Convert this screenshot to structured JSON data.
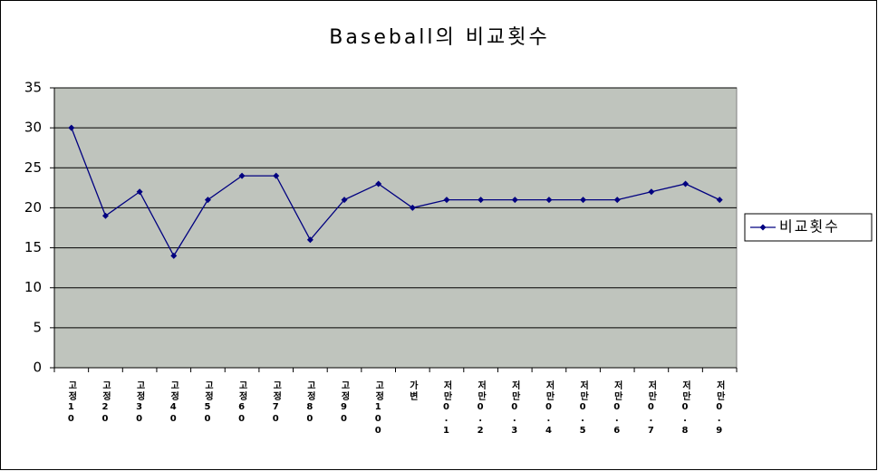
{
  "chart_data": {
    "type": "line",
    "title": "Baseball의 비교횟수",
    "categories": [
      "고정10",
      "고정20",
      "고정30",
      "고정40",
      "고정50",
      "고정60",
      "고정70",
      "고정80",
      "고정90",
      "고정100",
      "가변",
      "저만0.1",
      "저만0.2",
      "저만0.3",
      "저만0.4",
      "저만0.5",
      "저만0.6",
      "저만0.7",
      "저만0.8",
      "저만0.9"
    ],
    "series": [
      {
        "name": "비교횟수",
        "color": "#000080",
        "values": [
          30,
          19,
          22,
          14,
          21,
          24,
          24,
          16,
          21,
          23,
          20,
          21,
          21,
          21,
          21,
          21,
          21,
          22,
          23,
          21
        ]
      }
    ],
    "ylim": [
      0,
      35
    ],
    "yticks": [
      0,
      5,
      10,
      15,
      20,
      25,
      30,
      35
    ],
    "grid": true,
    "plot_background": "#bfc4bd",
    "legend": "right"
  }
}
